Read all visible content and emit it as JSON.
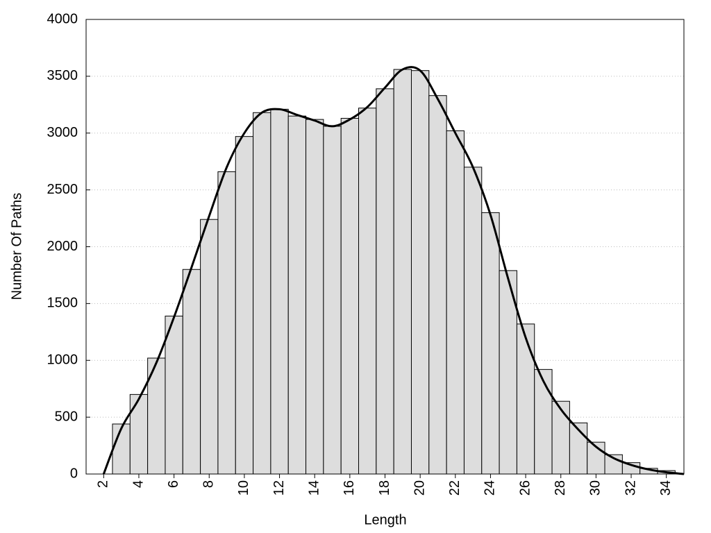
{
  "chart_data": {
    "type": "histogram",
    "xlabel": "Length",
    "ylabel": "Number Of Paths",
    "bins": [
      2.5,
      3.5,
      4.5,
      5.5,
      6.5,
      7.5,
      8.5,
      9.5,
      10.5,
      11.5,
      12.5,
      13.5,
      14.5,
      15.5,
      16.5,
      17.5,
      18.5,
      19.5,
      20.5,
      21.5,
      22.5,
      23.5,
      24.5,
      25.5,
      26.5,
      27.5,
      28.5,
      29.5,
      30.5,
      31.5,
      32.5,
      33.5,
      34.5
    ],
    "values": [
      440,
      700,
      1020,
      1390,
      1800,
      2240,
      2660,
      2970,
      3180,
      3210,
      3150,
      3120,
      3060,
      3130,
      3220,
      3390,
      3560,
      3550,
      3330,
      3020,
      2700,
      2300,
      1790,
      1320,
      920,
      640,
      450,
      280,
      170,
      100,
      50,
      30
    ],
    "color": "#dddddd",
    "curve": {
      "type": "line",
      "color": "#000000",
      "x": [
        2,
        3,
        4,
        5,
        6,
        7,
        8,
        9,
        10,
        11,
        12,
        13,
        14,
        15,
        16,
        17,
        18,
        19,
        20,
        21,
        22,
        23,
        24,
        25,
        26,
        27,
        28,
        29,
        30,
        31,
        32,
        33,
        34,
        35
      ],
      "values": [
        0,
        400,
        660,
        980,
        1380,
        1820,
        2270,
        2700,
        3000,
        3180,
        3210,
        3160,
        3110,
        3060,
        3120,
        3230,
        3400,
        3560,
        3550,
        3300,
        3000,
        2700,
        2280,
        1720,
        1200,
        820,
        570,
        390,
        240,
        140,
        80,
        40,
        15,
        0
      ]
    },
    "xlim": [
      1,
      35
    ],
    "ylim": [
      0,
      4000
    ],
    "xticks": [
      2,
      4,
      6,
      8,
      10,
      12,
      14,
      16,
      18,
      20,
      22,
      24,
      26,
      28,
      30,
      32,
      34
    ],
    "yticks": [
      0,
      500,
      1000,
      1500,
      2000,
      2500,
      3000,
      3500,
      4000
    ],
    "grid": true
  }
}
